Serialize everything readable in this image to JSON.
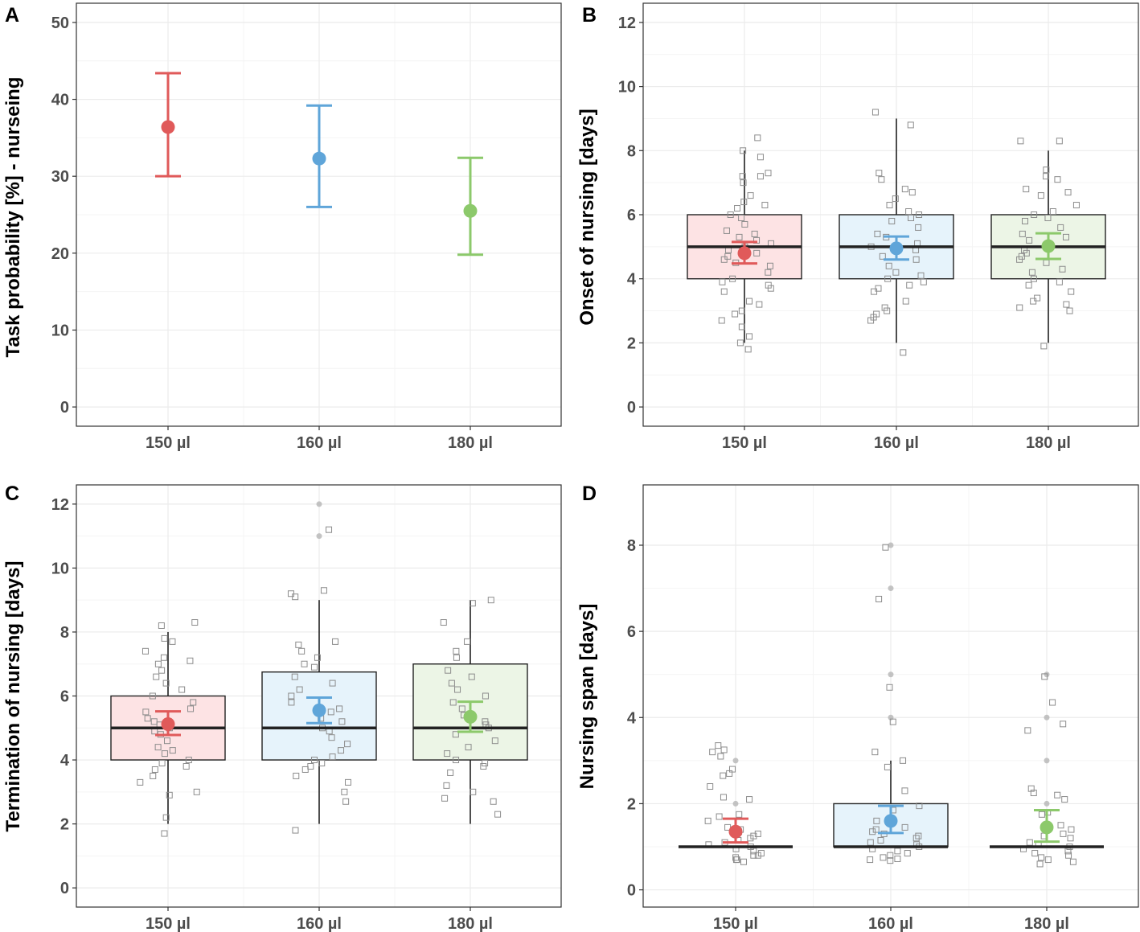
{
  "colors": {
    "series": [
      "#e05a5a",
      "#5fa5d9",
      "#8cc96b"
    ],
    "box_fill": [
      "#fde3e4",
      "#e6f3fb",
      "#ecf5e6"
    ],
    "grid_major": "#ebebeb",
    "grid_minor": "#f4f4f4"
  },
  "chart_data": [
    {
      "panel": "A",
      "type": "pointrange",
      "ylabel": "Task probability [%] - nurseing",
      "categories": [
        "150 µl",
        "160 µl",
        "180 µl"
      ],
      "ylim": [
        -2.5,
        52.5
      ],
      "yticks": [
        0,
        10,
        20,
        30,
        40,
        50
      ],
      "ytick_labels": [
        "0",
        "10",
        "20",
        "30",
        "40",
        "50"
      ],
      "points": [
        {
          "mean": 36.4,
          "lower": 30.0,
          "upper": 43.4
        },
        {
          "mean": 32.3,
          "lower": 26.0,
          "upper": 39.2
        },
        {
          "mean": 25.5,
          "lower": 19.8,
          "upper": 32.4
        }
      ]
    },
    {
      "panel": "B",
      "type": "boxplot",
      "ylabel": "Onset of nursing [days]",
      "categories": [
        "150 µl",
        "160 µl",
        "180 µl"
      ],
      "ylim": [
        -0.6,
        12.6
      ],
      "yticks": [
        0,
        2,
        4,
        6,
        8,
        10,
        12
      ],
      "ytick_labels": [
        "0",
        "2",
        "4",
        "6",
        "8",
        "10",
        "12"
      ],
      "boxes": [
        {
          "whisker_low": 2,
          "q1": 4,
          "median": 5,
          "q3": 6,
          "whisker_high": 8,
          "mean": 4.8,
          "ci_low": 4.48,
          "ci_high": 5.15,
          "outliers": []
        },
        {
          "whisker_low": 2,
          "q1": 4,
          "median": 5,
          "q3": 6,
          "whisker_high": 9,
          "mean": 4.95,
          "ci_low": 4.6,
          "ci_high": 5.32,
          "outliers": []
        },
        {
          "whisker_low": 2,
          "q1": 4,
          "median": 5,
          "q3": 6,
          "whisker_high": 8,
          "mean": 5.02,
          "ci_low": 4.62,
          "ci_high": 5.42,
          "outliers": []
        }
      ],
      "jitter": [
        [
          8.4,
          8.0,
          7.8,
          7.3,
          7.2,
          7.2,
          7.0,
          6.6,
          6.4,
          6.3,
          6.2,
          6.0,
          5.9,
          5.7,
          5.5,
          5.4,
          5.3,
          5.2,
          5.1,
          5.0,
          4.9,
          4.8,
          4.7,
          4.6,
          4.5,
          4.4,
          4.2,
          4.0,
          3.9,
          3.8,
          3.7,
          3.6,
          3.3,
          3.2,
          3.0,
          2.9,
          2.7,
          2.5,
          2.2,
          2.0,
          1.8
        ],
        [
          8.8,
          9.2,
          7.3,
          7.1,
          6.8,
          6.7,
          6.5,
          6.3,
          6.1,
          6.0,
          5.9,
          5.8,
          5.6,
          5.4,
          5.3,
          5.1,
          5.0,
          4.9,
          4.7,
          4.6,
          4.4,
          4.2,
          4.1,
          4.0,
          3.9,
          3.8,
          3.7,
          3.6,
          3.3,
          3.1,
          3.0,
          2.9,
          2.8,
          2.7,
          1.7
        ],
        [
          8.3,
          8.3,
          7.4,
          7.2,
          7.1,
          6.8,
          6.7,
          6.6,
          6.3,
          6.1,
          6.0,
          5.9,
          5.8,
          5.6,
          5.4,
          5.3,
          5.2,
          4.9,
          4.8,
          4.7,
          4.6,
          4.5,
          4.3,
          4.2,
          4.0,
          3.9,
          3.8,
          3.6,
          3.4,
          3.3,
          3.2,
          3.1,
          3.0,
          1.9
        ]
      ]
    },
    {
      "panel": "C",
      "type": "boxplot",
      "ylabel": "Termination of nursing [days]",
      "categories": [
        "150 µl",
        "160 µl",
        "180 µl"
      ],
      "ylim": [
        -0.6,
        12.6
      ],
      "yticks": [
        0,
        2,
        4,
        6,
        8,
        10,
        12
      ],
      "ytick_labels": [
        "0",
        "2",
        "4",
        "6",
        "8",
        "10",
        "12"
      ],
      "boxes": [
        {
          "whisker_low": 2,
          "q1": 4,
          "median": 5,
          "q3": 6,
          "whisker_high": 8,
          "mean": 5.12,
          "ci_low": 4.78,
          "ci_high": 5.52,
          "outliers": []
        },
        {
          "whisker_low": 2,
          "q1": 4,
          "median": 5,
          "q3": 6.75,
          "whisker_high": 9,
          "mean": 5.55,
          "ci_low": 5.15,
          "ci_high": 5.95,
          "outliers": [
            11,
            12
          ]
        },
        {
          "whisker_low": 2,
          "q1": 4,
          "median": 5,
          "q3": 7,
          "whisker_high": 9,
          "mean": 5.35,
          "ci_low": 4.88,
          "ci_high": 5.82,
          "outliers": []
        }
      ],
      "jitter": [
        [
          8.3,
          8.2,
          7.8,
          7.7,
          7.4,
          7.2,
          7.1,
          7.0,
          6.8,
          6.6,
          6.4,
          6.2,
          6.0,
          5.8,
          5.6,
          5.5,
          5.3,
          5.2,
          5.1,
          5.0,
          4.9,
          4.8,
          4.6,
          4.4,
          4.3,
          4.2,
          4.0,
          3.9,
          3.8,
          3.7,
          3.5,
          3.3,
          3.0,
          2.9,
          2.2,
          1.7
        ],
        [
          11.2,
          9.3,
          9.2,
          9.1,
          7.7,
          7.6,
          7.4,
          7.2,
          7.0,
          6.9,
          6.6,
          6.4,
          6.2,
          6.0,
          5.8,
          5.6,
          5.5,
          5.3,
          5.2,
          5.0,
          4.9,
          4.7,
          4.5,
          4.3,
          4.1,
          4.0,
          3.9,
          3.8,
          3.7,
          3.5,
          3.3,
          3.0,
          2.7,
          1.8
        ],
        [
          9.0,
          8.9,
          8.3,
          7.7,
          7.4,
          7.2,
          6.8,
          6.6,
          6.4,
          6.2,
          6.0,
          5.8,
          5.6,
          5.4,
          5.2,
          5.1,
          5.0,
          4.8,
          4.6,
          4.4,
          4.2,
          4.0,
          3.9,
          3.8,
          3.6,
          3.2,
          3.0,
          2.8,
          2.7,
          2.3
        ]
      ]
    },
    {
      "panel": "D",
      "type": "boxplot",
      "ylabel": "Nursing span [days]",
      "categories": [
        "150 µl",
        "160 µl",
        "180 µl"
      ],
      "ylim": [
        -0.4,
        9.4
      ],
      "yticks": [
        0,
        2,
        4,
        6,
        8
      ],
      "ytick_labels": [
        "0",
        "2",
        "4",
        "6",
        "8"
      ],
      "boxes": [
        {
          "whisker_low": 1,
          "q1": 1,
          "median": 1,
          "q3": 1,
          "whisker_high": 1,
          "mean": 1.35,
          "ci_low": 1.1,
          "ci_high": 1.65,
          "outliers": [
            2,
            3
          ]
        },
        {
          "whisker_low": 1,
          "q1": 1,
          "median": 1,
          "q3": 2,
          "whisker_high": 3,
          "mean": 1.6,
          "ci_low": 1.32,
          "ci_high": 1.95,
          "outliers": [
            4,
            5,
            7,
            8
          ]
        },
        {
          "whisker_low": 1,
          "q1": 1,
          "median": 1,
          "q3": 1,
          "whisker_high": 1,
          "mean": 1.45,
          "ci_low": 1.12,
          "ci_high": 1.85,
          "outliers": [
            2,
            3,
            4,
            5
          ]
        }
      ],
      "jitter": [
        [
          3.35,
          3.25,
          3.2,
          3.1,
          2.8,
          2.7,
          2.65,
          2.4,
          2.15,
          2.1,
          1.75,
          1.7,
          1.6,
          1.45,
          1.4,
          1.35,
          1.3,
          1.25,
          1.2,
          1.15,
          1.1,
          1.05,
          1.0,
          0.95,
          0.9,
          0.85,
          0.8,
          0.75,
          0.7,
          0.65,
          0.7,
          0.8
        ],
        [
          7.95,
          6.75,
          4.7,
          3.9,
          3.2,
          3.0,
          2.85,
          2.3,
          1.95,
          1.85,
          1.6,
          1.45,
          1.4,
          1.35,
          1.3,
          1.25,
          1.2,
          1.15,
          1.1,
          1.05,
          1.0,
          0.95,
          0.9,
          0.85,
          0.8,
          0.75,
          0.7,
          0.68,
          0.72
        ],
        [
          4.95,
          4.35,
          3.85,
          3.7,
          2.35,
          2.25,
          2.2,
          2.1,
          1.8,
          1.75,
          1.5,
          1.4,
          1.3,
          1.25,
          1.2,
          1.1,
          1.05,
          1.0,
          0.95,
          0.9,
          0.85,
          0.8,
          0.75,
          0.7,
          0.65,
          0.6
        ]
      ]
    }
  ]
}
